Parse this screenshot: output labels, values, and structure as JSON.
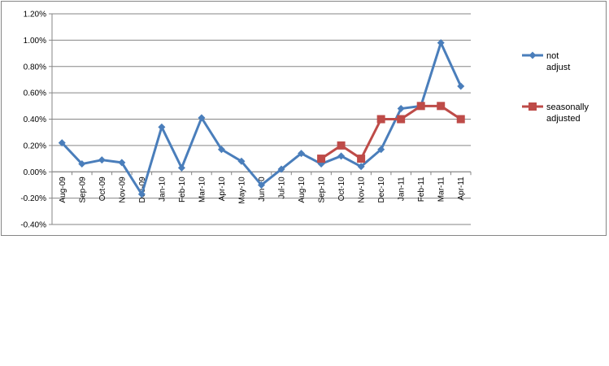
{
  "chart_data": {
    "type": "line",
    "title": "",
    "xlabel": "",
    "ylabel": "",
    "categories": [
      "Aug-09",
      "Sep-09",
      "Oct-09",
      "Nov-09",
      "Dec-09",
      "Jan-10",
      "Feb-10",
      "Mar-10",
      "Apr-10",
      "May-10",
      "Jun-10",
      "Jul-10",
      "Aug-10",
      "Sep-10",
      "Oct-10",
      "Nov-10",
      "Dec-10",
      "Jan-11",
      "Feb-11",
      "Mar-11",
      "Apr-11"
    ],
    "ylim": [
      -0.4,
      1.2
    ],
    "yticks": [
      "-0.40%",
      "-0.20%",
      "0.00%",
      "0.20%",
      "0.40%",
      "0.60%",
      "0.80%",
      "1.00%",
      "1.20%"
    ],
    "grid": true,
    "legend_position": "right",
    "series": [
      {
        "name": "not adjust",
        "color": "#4a7ebb",
        "marker": "diamond",
        "values": [
          0.22,
          0.06,
          0.09,
          0.07,
          -0.17,
          0.34,
          0.03,
          0.41,
          0.17,
          0.08,
          -0.1,
          0.02,
          0.14,
          0.06,
          0.12,
          0.04,
          0.17,
          0.48,
          0.5,
          0.98,
          0.65
        ]
      },
      {
        "name": "seasonally adjusted",
        "color": "#be4b48",
        "marker": "square",
        "values": [
          null,
          null,
          null,
          null,
          null,
          null,
          null,
          null,
          null,
          null,
          null,
          null,
          null,
          0.1,
          0.2,
          0.1,
          0.4,
          0.4,
          0.5,
          0.5,
          0.4
        ]
      }
    ]
  }
}
